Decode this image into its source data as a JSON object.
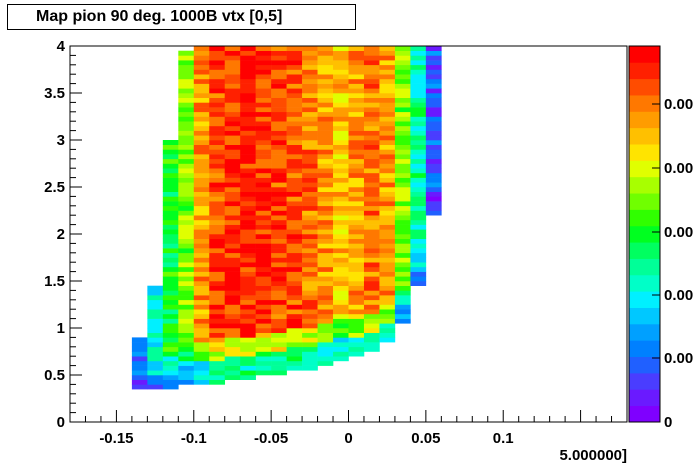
{
  "chart_data": {
    "type": "heatmap",
    "title": "Map pion 90 deg. 1000B vtx [0,5]",
    "xlabel": "5.000000]",
    "ylabel": "",
    "xlim": [
      -0.18,
      0.18
    ],
    "ylim": [
      0,
      4
    ],
    "x_ticks": [
      "-0.15",
      "-0.1",
      "-0.05",
      "0",
      "0.05",
      "0.1"
    ],
    "x_tick_values": [
      -0.15,
      -0.1,
      -0.05,
      0,
      0.05,
      0.1
    ],
    "y_ticks": [
      "0",
      "0.5",
      "1",
      "1.5",
      "2",
      "2.5",
      "3",
      "3.5",
      "4"
    ],
    "y_tick_values": [
      0,
      0.5,
      1,
      1.5,
      2,
      2.5,
      3,
      3.5,
      4
    ],
    "colorbar_labels": [
      "0",
      "0.00",
      "0.00",
      "0.00",
      "0.00",
      "0.00"
    ],
    "colorbar_colors": [
      "#7f00ff",
      "#6a1aff",
      "#4a3dff",
      "#2060ff",
      "#0080ff",
      "#00a0ff",
      "#00c8ff",
      "#00f0ff",
      "#00ffc8",
      "#00ff98",
      "#00ff60",
      "#00ff20",
      "#30ff00",
      "#70ff00",
      "#a8ff00",
      "#e0ff00",
      "#ffe400",
      "#ffc000",
      "#ff9c00",
      "#ff7800",
      "#ff4c00",
      "#ff2000",
      "#ff0000"
    ],
    "x_bin_width": 0.01,
    "columns": [
      {
        "x": -0.135,
        "y_range": [
          0.35,
          0.9
        ],
        "level": 0.15
      },
      {
        "x": -0.125,
        "y_range": [
          0.35,
          1.45
        ],
        "level": 0.35
      },
      {
        "x": -0.115,
        "y_range": [
          0.35,
          3.0
        ],
        "level": 0.5
      },
      {
        "x": -0.105,
        "y_range": [
          0.4,
          3.95
        ],
        "level": 0.6
      },
      {
        "x": -0.095,
        "y_range": [
          0.4,
          4.0
        ],
        "level": 0.8
      },
      {
        "x": -0.085,
        "y_range": [
          0.4,
          4.0
        ],
        "level": 0.9
      },
      {
        "x": -0.075,
        "y_range": [
          0.45,
          4.0
        ],
        "level": 0.92
      },
      {
        "x": -0.065,
        "y_range": [
          0.45,
          4.0
        ],
        "level": 0.95
      },
      {
        "x": -0.055,
        "y_range": [
          0.5,
          4.0
        ],
        "level": 0.93
      },
      {
        "x": -0.045,
        "y_range": [
          0.5,
          4.0
        ],
        "level": 0.9
      },
      {
        "x": -0.035,
        "y_range": [
          0.55,
          4.0
        ],
        "level": 0.88
      },
      {
        "x": -0.025,
        "y_range": [
          0.55,
          4.0
        ],
        "level": 0.85
      },
      {
        "x": -0.015,
        "y_range": [
          0.6,
          4.0
        ],
        "level": 0.82
      },
      {
        "x": -0.005,
        "y_range": [
          0.65,
          4.0
        ],
        "level": 0.75
      },
      {
        "x": 0.005,
        "y_range": [
          0.7,
          4.0
        ],
        "level": 0.8
      },
      {
        "x": 0.015,
        "y_range": [
          0.75,
          4.0
        ],
        "level": 0.85
      },
      {
        "x": 0.025,
        "y_range": [
          0.85,
          4.0
        ],
        "level": 0.8
      },
      {
        "x": 0.035,
        "y_range": [
          1.05,
          4.0
        ],
        "level": 0.6
      },
      {
        "x": 0.045,
        "y_range": [
          1.45,
          4.0
        ],
        "level": 0.4
      },
      {
        "x": 0.055,
        "y_range": [
          2.2,
          4.0
        ],
        "level": 0.15
      }
    ]
  }
}
